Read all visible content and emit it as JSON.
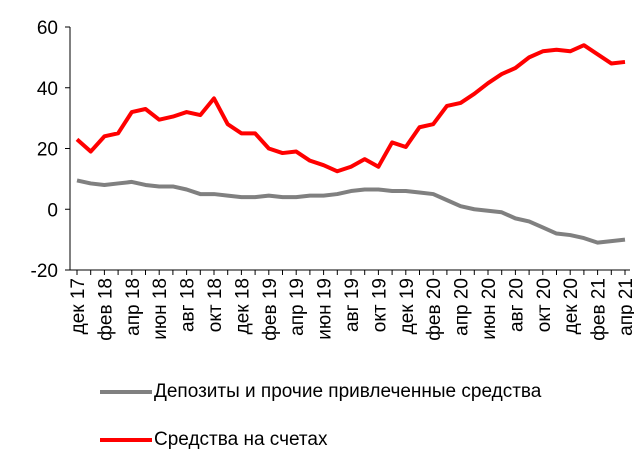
{
  "chart_data": {
    "type": "line",
    "categories": [
      "дек 17",
      null,
      "фев 18",
      null,
      "апр 18",
      null,
      "июн 18",
      null,
      "авг 18",
      null,
      "окт 18",
      null,
      "дек 18",
      null,
      "фев 19",
      null,
      "апр 19",
      null,
      "июн 19",
      null,
      "авг 19",
      null,
      "окт 19",
      null,
      "дек 19",
      null,
      "фев 20",
      null,
      "апр 20",
      null,
      "июн 20",
      null,
      "авг 20",
      null,
      "окт 20",
      null,
      "дек 20",
      null,
      "фев 21",
      null,
      "апр 21"
    ],
    "series": [
      {
        "name": "Депозиты и прочие привлеченные средства",
        "color": "#808080",
        "values": [
          9.5,
          8.5,
          8,
          8.5,
          9,
          8,
          7.5,
          7.5,
          6.5,
          5,
          5,
          4.5,
          4,
          4,
          4.5,
          4,
          4,
          4.5,
          4.5,
          5,
          6,
          6.5,
          6.5,
          6,
          6,
          5.5,
          5,
          3,
          1,
          0,
          -0.5,
          -1,
          -3,
          -4,
          -6,
          -8,
          -8.5,
          -9.5,
          -11,
          -10.5,
          -10
        ]
      },
      {
        "name": "Средства на счетах",
        "color": "#ff0000",
        "values": [
          23,
          19,
          24,
          25,
          32,
          33,
          29.5,
          30.5,
          32,
          31,
          36.5,
          28,
          25,
          25,
          20,
          18.5,
          19,
          16,
          14.5,
          12.5,
          14,
          16.5,
          14,
          22,
          20.5,
          27,
          28,
          34,
          35,
          38,
          41.5,
          44.5,
          46.5,
          50,
          52,
          52.5,
          52,
          54,
          51,
          48,
          48.5
        ]
      }
    ],
    "ylim": [
      -20,
      60
    ],
    "yticks": [
      -20,
      0,
      20,
      40,
      60
    ]
  }
}
